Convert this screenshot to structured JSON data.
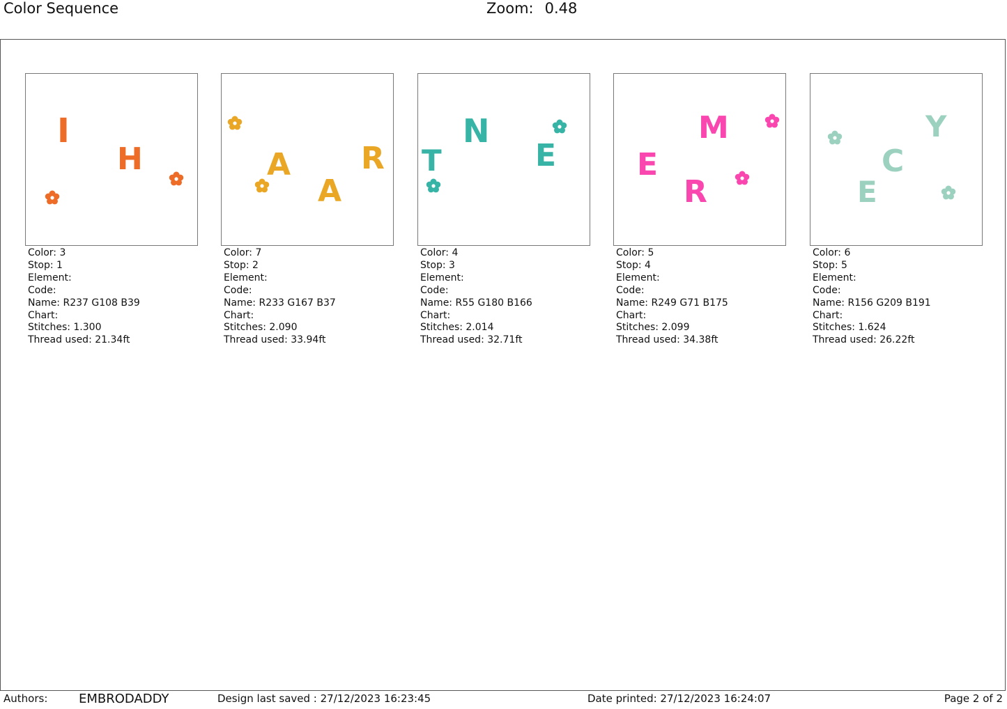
{
  "header": {
    "title": "Color Sequence",
    "zoom_label": "Zoom:",
    "zoom_value": "0.48"
  },
  "colors": [
    {
      "swatch": "#ED6C27",
      "glyphs": [
        "I",
        "H"
      ],
      "lines": {
        "color": "Color: 3",
        "stop": "Stop: 1",
        "element": "Element:",
        "code": "Code:",
        "name": "Name: R237 G108 B39",
        "chart": "Chart:",
        "stitches": "Stitches: 1.300",
        "thread": "Thread used: 21.34ft"
      }
    },
    {
      "swatch": "#E9A725",
      "glyphs": [
        "A",
        "R",
        "A"
      ],
      "lines": {
        "color": "Color: 7",
        "stop": "Stop: 2",
        "element": "Element:",
        "code": "Code:",
        "name": "Name: R233 G167 B37",
        "chart": "Chart:",
        "stitches": "Stitches: 2.090",
        "thread": "Thread used: 33.94ft"
      }
    },
    {
      "swatch": "#37B4A6",
      "glyphs": [
        "N",
        "T",
        "E"
      ],
      "lines": {
        "color": "Color: 4",
        "stop": "Stop: 3",
        "element": "Element:",
        "code": "Code:",
        "name": "Name: R55 G180 B166",
        "chart": "Chart:",
        "stitches": "Stitches: 2.014",
        "thread": "Thread used: 32.71ft"
      }
    },
    {
      "swatch": "#F947AF",
      "glyphs": [
        "M",
        "E",
        "R"
      ],
      "lines": {
        "color": "Color: 5",
        "stop": "Stop: 4",
        "element": "Element:",
        "code": "Code:",
        "name": "Name: R249 G71 B175",
        "chart": "Chart:",
        "stitches": "Stitches: 2.099",
        "thread": "Thread used: 34.38ft"
      }
    },
    {
      "swatch": "#9CD1BF",
      "glyphs": [
        "Y",
        "C",
        "E"
      ],
      "lines": {
        "color": "Color: 6",
        "stop": "Stop: 5",
        "element": "Element:",
        "code": "Code:",
        "name": "Name: R156 G209 B191",
        "chart": "Chart:",
        "stitches": "Stitches: 1.624",
        "thread": "Thread used: 26.22ft"
      }
    }
  ],
  "footer": {
    "authors_label": "Authors:",
    "authors_value": "EMBRODADDY",
    "design_saved": "Design last saved : 27/12/2023 16:23:45",
    "date_printed": "Date printed: 27/12/2023 16:24:07",
    "page": "Page 2 of 2"
  }
}
